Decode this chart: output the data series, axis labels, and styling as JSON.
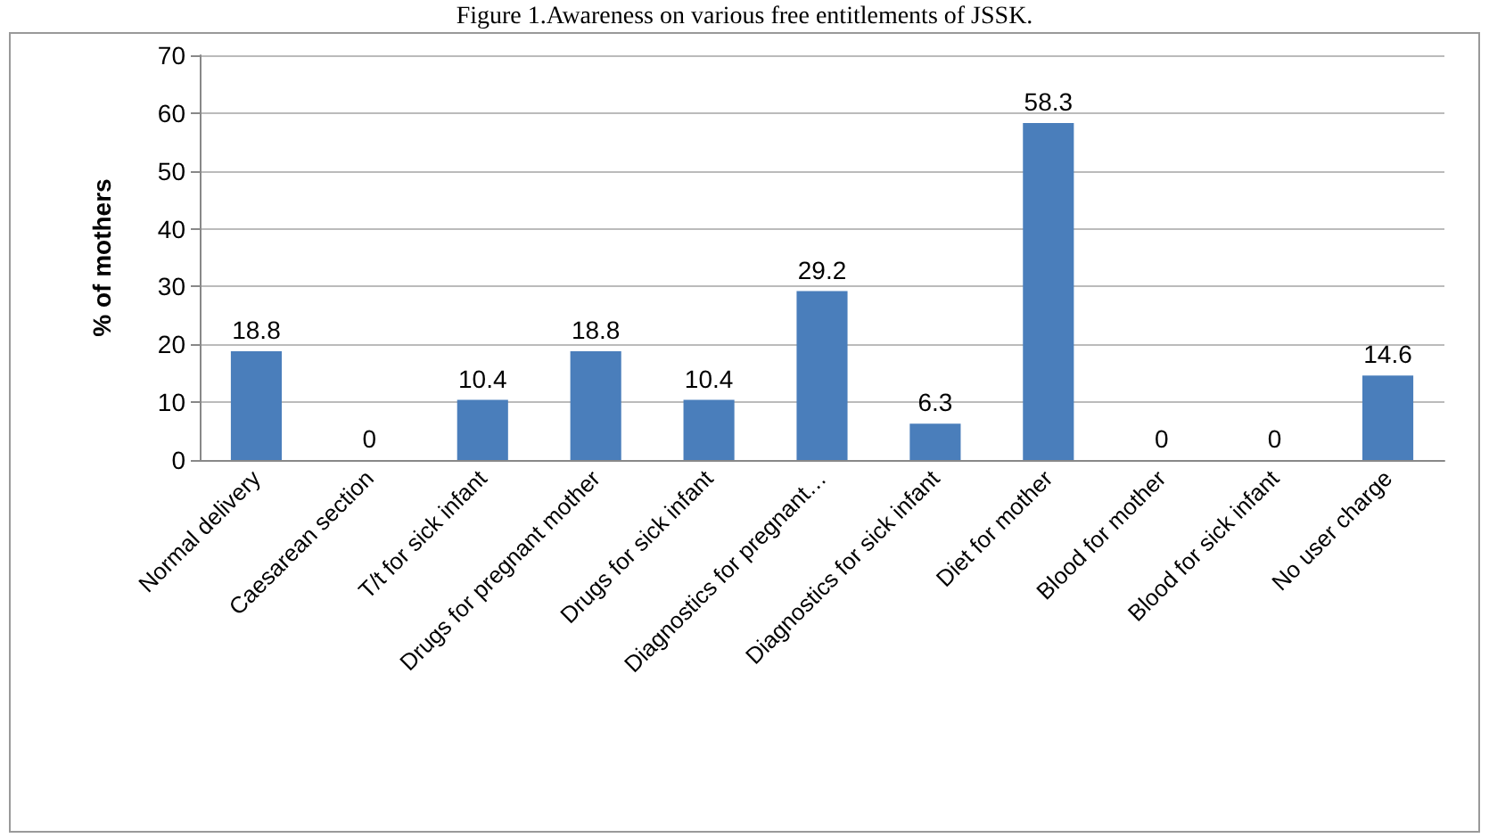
{
  "chart_data": {
    "type": "bar",
    "title": "Figure 1.Awareness on various free entitlements of JSSK.",
    "ylabel": "% of mothers",
    "categories": [
      "Normal delivery",
      "Caesarean section",
      "T/t for sick infant",
      "Drugs for pregnant mother",
      "Drugs for sick infant",
      "Diagnostics for pregnant…",
      "Diagnostics for sick infant",
      "Diet for mother",
      "Blood for mother",
      "Blood for sick infant",
      "No user charge"
    ],
    "values": [
      18.8,
      0,
      10.4,
      18.8,
      10.4,
      29.2,
      6.3,
      58.3,
      0,
      0,
      14.6
    ],
    "color": "#4a7ebb",
    "ylim": [
      0,
      70
    ],
    "yticks": [
      0,
      10,
      20,
      30,
      40,
      50,
      60,
      70
    ],
    "grid": "y",
    "data_labels": true
  }
}
